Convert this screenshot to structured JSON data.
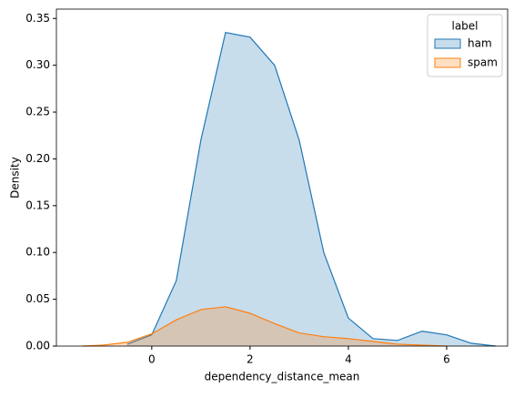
{
  "chart_data": {
    "type": "kde",
    "x_label": "dependency_distance_mean",
    "y_label": "Density",
    "x": [
      -1.4,
      -1.0,
      -0.5,
      0,
      0.5,
      1.0,
      1.5,
      2.0,
      2.5,
      3.0,
      3.5,
      4.0,
      4.5,
      5.0,
      5.5,
      6.0,
      6.5,
      7.0
    ],
    "series": [
      {
        "name": "ham",
        "color": "#1f77b4",
        "values": [
          null,
          null,
          0.002,
          0.012,
          0.07,
          0.22,
          0.335,
          0.33,
          0.3,
          0.22,
          0.1,
          0.03,
          0.008,
          0.006,
          0.016,
          0.012,
          0.003,
          0
        ]
      },
      {
        "name": "spam",
        "color": "#ff7f0e",
        "values": [
          0,
          0.001,
          0.004,
          0.013,
          0.028,
          0.039,
          0.042,
          0.035,
          0.024,
          0.014,
          0.01,
          0.008,
          0.005,
          0.002,
          0.001,
          0,
          null,
          null
        ]
      }
    ],
    "legend_title": "label",
    "legend": "upper right",
    "xlim": [
      -1.94,
      7.24
    ],
    "xticks": [
      0,
      2,
      4,
      6
    ],
    "ylim": [
      0,
      0.36
    ],
    "yticks": [
      {
        "value": 0,
        "label": "0.00"
      },
      0.05,
      {
        "value": 0.1,
        "label": "0.10"
      },
      0.15,
      {
        "value": 0.2,
        "label": "0.20"
      },
      0.25,
      {
        "value": 0.3,
        "label": "0.30"
      },
      0.35
    ]
  }
}
